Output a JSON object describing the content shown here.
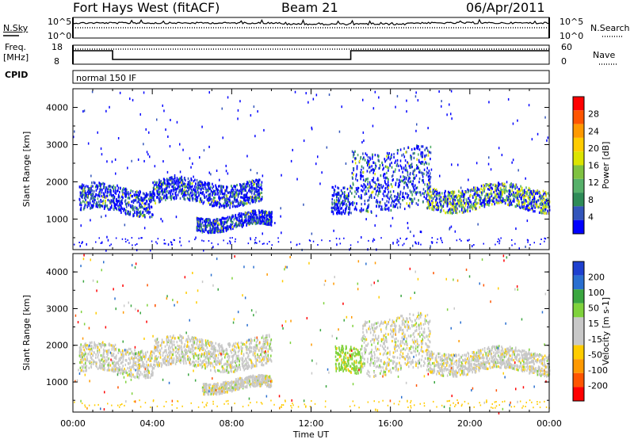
{
  "header": {
    "radar": "Fort Hays West (fitACF)",
    "beam": "Beam 21",
    "date": "06/Apr/2011"
  },
  "panels": {
    "nsky": {
      "left_label": "N.Sky",
      "right_label": "N.Search",
      "top_tick": "10^5",
      "bottom_tick": "10^0"
    },
    "freq": {
      "left_label_top": "Freq.",
      "left_label_bottom": "[MHz]",
      "left_ticks": [
        "18",
        "8"
      ],
      "right_label": "Nave",
      "right_ticks": [
        "60",
        "0"
      ]
    },
    "cpid": {
      "label": "CPID",
      "value": "normal 150 IF"
    }
  },
  "colors": {
    "power_scale": [
      "#0000ff",
      "#3355bb",
      "#2e8b57",
      "#56b06a",
      "#7fc241",
      "#dce400",
      "#ffcc00",
      "#ff9900",
      "#ff5500",
      "#ff0000"
    ],
    "velocity_scale": [
      "#ff0000",
      "#ff5500",
      "#ff9900",
      "#ffcc00",
      "#c8c8c8",
      "#c8c8c8",
      "#7fd23c",
      "#3aa640",
      "#2a6fd0",
      "#1e40cf"
    ]
  },
  "chart_data": [
    {
      "type": "heatmap",
      "panel": "power",
      "xlabel": "Time UT",
      "ylabel": "Slant Range [km]",
      "colorbar_label": "Power [dB]",
      "colorbar_ticks": [
        "28",
        "24",
        "20",
        "16",
        "12",
        "8",
        "4"
      ],
      "ylim": [
        180,
        4500
      ],
      "y_ticks": [
        "4000",
        "3000",
        "2000",
        "1000"
      ],
      "x_ticks": [
        "00:00",
        "04:00",
        "08:00",
        "12:00",
        "16:00",
        "20:00",
        "00:00"
      ],
      "echo_bands": [
        {
          "t0": 0.3,
          "t1": 4.0,
          "r": [
            1200,
            1900
          ],
          "color": 0
        },
        {
          "t0": 4.0,
          "t1": 9.5,
          "r": [
            1450,
            2050
          ],
          "color": 1
        },
        {
          "t0": 6.2,
          "t1": 10.0,
          "r": [
            780,
            1150
          ],
          "color": 0
        },
        {
          "t0": 13.0,
          "t1": 14.0,
          "r": [
            1050,
            1800
          ],
          "color": 0
        },
        {
          "t0": 14.0,
          "t1": 18.0,
          "r": [
            1300,
            2900
          ],
          "color": 0
        },
        {
          "t0": 17.8,
          "t1": 24.0,
          "r": [
            1300,
            1900
          ],
          "color": 3
        }
      ]
    },
    {
      "type": "heatmap",
      "panel": "velocity",
      "xlabel": "Time UT",
      "ylabel": "Slant Range [km]",
      "colorbar_label": "Velocity [m s-1]",
      "colorbar_ticks": [
        "200",
        "100",
        "50",
        "15",
        "-15",
        "-50",
        "-100",
        "-200"
      ],
      "ylim": [
        180,
        4500
      ],
      "y_ticks": [
        "4000",
        "3000",
        "2000",
        "1000"
      ],
      "x_ticks": [
        "00:00",
        "04:00",
        "08:00",
        "12:00",
        "16:00",
        "20:00",
        "00:00"
      ],
      "echo_bands": [
        {
          "t0": 0.3,
          "t1": 4.0,
          "r": [
            1250,
            2000
          ],
          "color": 4
        },
        {
          "t0": 4.0,
          "t1": 10.0,
          "r": [
            1400,
            2200
          ],
          "color": 4
        },
        {
          "t0": 6.5,
          "t1": 10.0,
          "r": [
            800,
            1100
          ],
          "color": 4
        },
        {
          "t0": 13.2,
          "t1": 14.5,
          "r": [
            1200,
            1900
          ],
          "color": 6
        },
        {
          "t0": 14.5,
          "t1": 18.0,
          "r": [
            1300,
            2800
          ],
          "color": 4
        },
        {
          "t0": 17.8,
          "t1": 24.0,
          "r": [
            1300,
            1900
          ],
          "color": 4
        }
      ]
    }
  ]
}
